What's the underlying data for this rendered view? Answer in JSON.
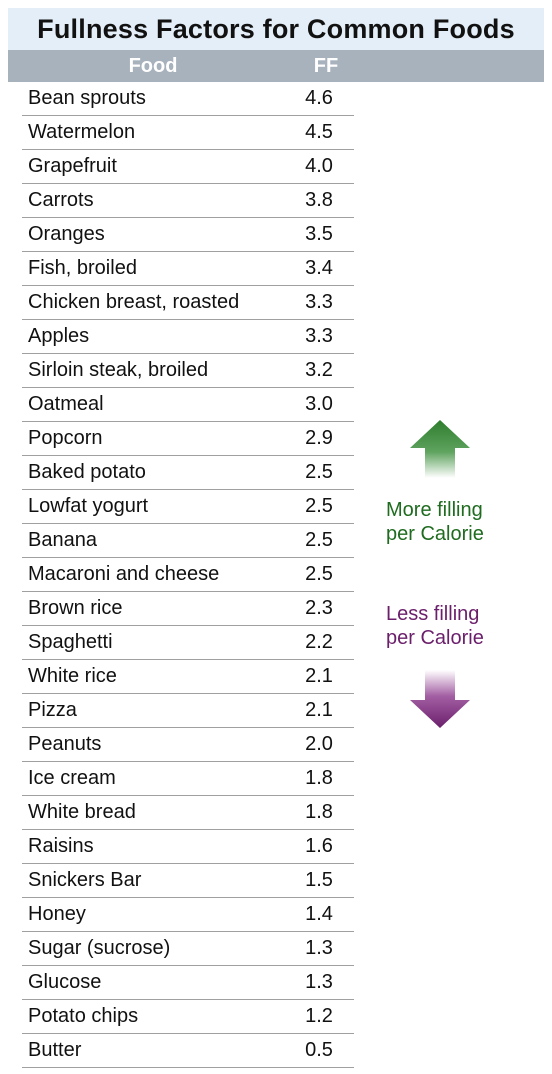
{
  "chart_data": {
    "type": "table",
    "title": "Fullness Factors for Common Foods",
    "columns": [
      "Food",
      "FF"
    ],
    "rows": [
      {
        "food": "Bean sprouts",
        "ff": "4.6"
      },
      {
        "food": "Watermelon",
        "ff": "4.5"
      },
      {
        "food": "Grapefruit",
        "ff": "4.0"
      },
      {
        "food": "Carrots",
        "ff": "3.8"
      },
      {
        "food": "Oranges",
        "ff": "3.5"
      },
      {
        "food": "Fish, broiled",
        "ff": "3.4"
      },
      {
        "food": "Chicken breast, roasted",
        "ff": "3.3"
      },
      {
        "food": "Apples",
        "ff": "3.3"
      },
      {
        "food": "Sirloin steak, broiled",
        "ff": "3.2"
      },
      {
        "food": "Oatmeal",
        "ff": "3.0"
      },
      {
        "food": "Popcorn",
        "ff": "2.9"
      },
      {
        "food": "Baked potato",
        "ff": "2.5"
      },
      {
        "food": "Lowfat yogurt",
        "ff": "2.5"
      },
      {
        "food": "Banana",
        "ff": "2.5"
      },
      {
        "food": "Macaroni and cheese",
        "ff": "2.5"
      },
      {
        "food": "Brown rice",
        "ff": "2.3"
      },
      {
        "food": "Spaghetti",
        "ff": "2.2"
      },
      {
        "food": "White rice",
        "ff": "2.1"
      },
      {
        "food": "Pizza",
        "ff": "2.1"
      },
      {
        "food": "Peanuts",
        "ff": "2.0"
      },
      {
        "food": "Ice cream",
        "ff": "1.8"
      },
      {
        "food": "White bread",
        "ff": "1.8"
      },
      {
        "food": "Raisins",
        "ff": "1.6"
      },
      {
        "food": "Snickers Bar",
        "ff": "1.5"
      },
      {
        "food": "Honey",
        "ff": "1.4"
      },
      {
        "food": "Sugar (sucrose)",
        "ff": "1.3"
      },
      {
        "food": "Glucose",
        "ff": "1.3"
      },
      {
        "food": "Potato chips",
        "ff": "1.2"
      },
      {
        "food": "Butter",
        "ff": "0.5"
      }
    ],
    "legend": {
      "more_line1": "More filling",
      "more_line2": "per Calorie",
      "less_line1": "Less filling",
      "less_line2": "per Calorie"
    }
  },
  "colors": {
    "title_background": "#e3eef8",
    "header_background": "#a8b2bd",
    "more_filling": "#1f6b1f",
    "less_filling": "#6b1f6b"
  }
}
